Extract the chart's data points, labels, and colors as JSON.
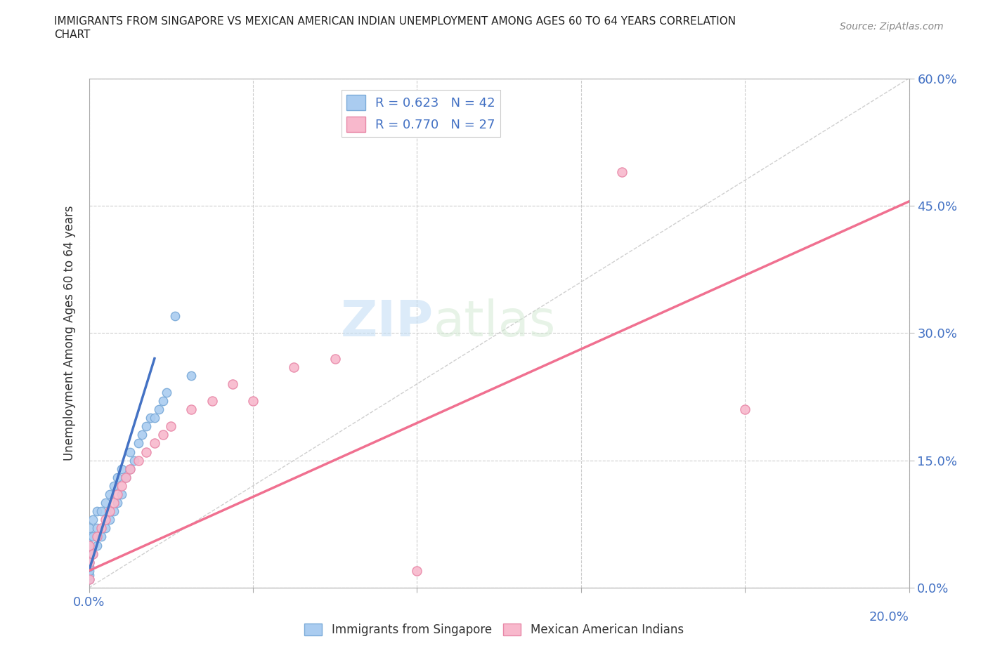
{
  "title_line1": "IMMIGRANTS FROM SINGAPORE VS MEXICAN AMERICAN INDIAN UNEMPLOYMENT AMONG AGES 60 TO 64 YEARS CORRELATION",
  "title_line2": "CHART",
  "source": "Source: ZipAtlas.com",
  "ylabel": "Unemployment Among Ages 60 to 64 years",
  "xlim": [
    0.0,
    0.2
  ],
  "ylim": [
    0.0,
    0.6
  ],
  "xticks": [
    0.0,
    0.04,
    0.08,
    0.12,
    0.16,
    0.2
  ],
  "yticks": [
    0.0,
    0.15,
    0.3,
    0.45,
    0.6
  ],
  "series1_color": "#aaccf0",
  "series1_edge": "#7aaad8",
  "series1_line_color": "#4472c4",
  "series2_color": "#f8b8cc",
  "series2_edge": "#e888a8",
  "series2_line_color": "#f07090",
  "r1": 0.623,
  "n1": 42,
  "r2": 0.77,
  "n2": 27,
  "legend_label1": "Immigrants from Singapore",
  "legend_label2": "Mexican American Indians",
  "watermark_zip": "ZIP",
  "watermark_atlas": "atlas",
  "grid_color": "#cccccc",
  "bg_color": "#ffffff",
  "blue_x": [
    0.0,
    0.0,
    0.0,
    0.0,
    0.0,
    0.0,
    0.0,
    0.0,
    0.0,
    0.0,
    0.001,
    0.001,
    0.001,
    0.002,
    0.002,
    0.002,
    0.003,
    0.003,
    0.004,
    0.004,
    0.005,
    0.005,
    0.006,
    0.006,
    0.007,
    0.007,
    0.008,
    0.008,
    0.009,
    0.01,
    0.01,
    0.011,
    0.012,
    0.013,
    0.014,
    0.015,
    0.016,
    0.017,
    0.018,
    0.019,
    0.021,
    0.025
  ],
  "blue_y": [
    0.01,
    0.015,
    0.02,
    0.025,
    0.03,
    0.035,
    0.04,
    0.05,
    0.06,
    0.07,
    0.04,
    0.06,
    0.08,
    0.05,
    0.07,
    0.09,
    0.06,
    0.09,
    0.07,
    0.1,
    0.08,
    0.11,
    0.09,
    0.12,
    0.1,
    0.13,
    0.11,
    0.14,
    0.13,
    0.14,
    0.16,
    0.15,
    0.17,
    0.18,
    0.19,
    0.2,
    0.2,
    0.21,
    0.22,
    0.23,
    0.32,
    0.25
  ],
  "pink_x": [
    0.0,
    0.0,
    0.0,
    0.001,
    0.002,
    0.003,
    0.004,
    0.005,
    0.006,
    0.007,
    0.008,
    0.009,
    0.01,
    0.012,
    0.014,
    0.016,
    0.018,
    0.02,
    0.025,
    0.03,
    0.035,
    0.04,
    0.05,
    0.06,
    0.08,
    0.13,
    0.16
  ],
  "pink_y": [
    0.01,
    0.03,
    0.05,
    0.04,
    0.06,
    0.07,
    0.08,
    0.09,
    0.1,
    0.11,
    0.12,
    0.13,
    0.14,
    0.15,
    0.16,
    0.17,
    0.18,
    0.19,
    0.21,
    0.22,
    0.24,
    0.22,
    0.26,
    0.27,
    0.02,
    0.49,
    0.21
  ],
  "blue_line_x": [
    0.0,
    0.016
  ],
  "blue_line_y": [
    0.02,
    0.27
  ],
  "pink_line_x": [
    0.0,
    0.2
  ],
  "pink_line_y": [
    0.02,
    0.455
  ]
}
